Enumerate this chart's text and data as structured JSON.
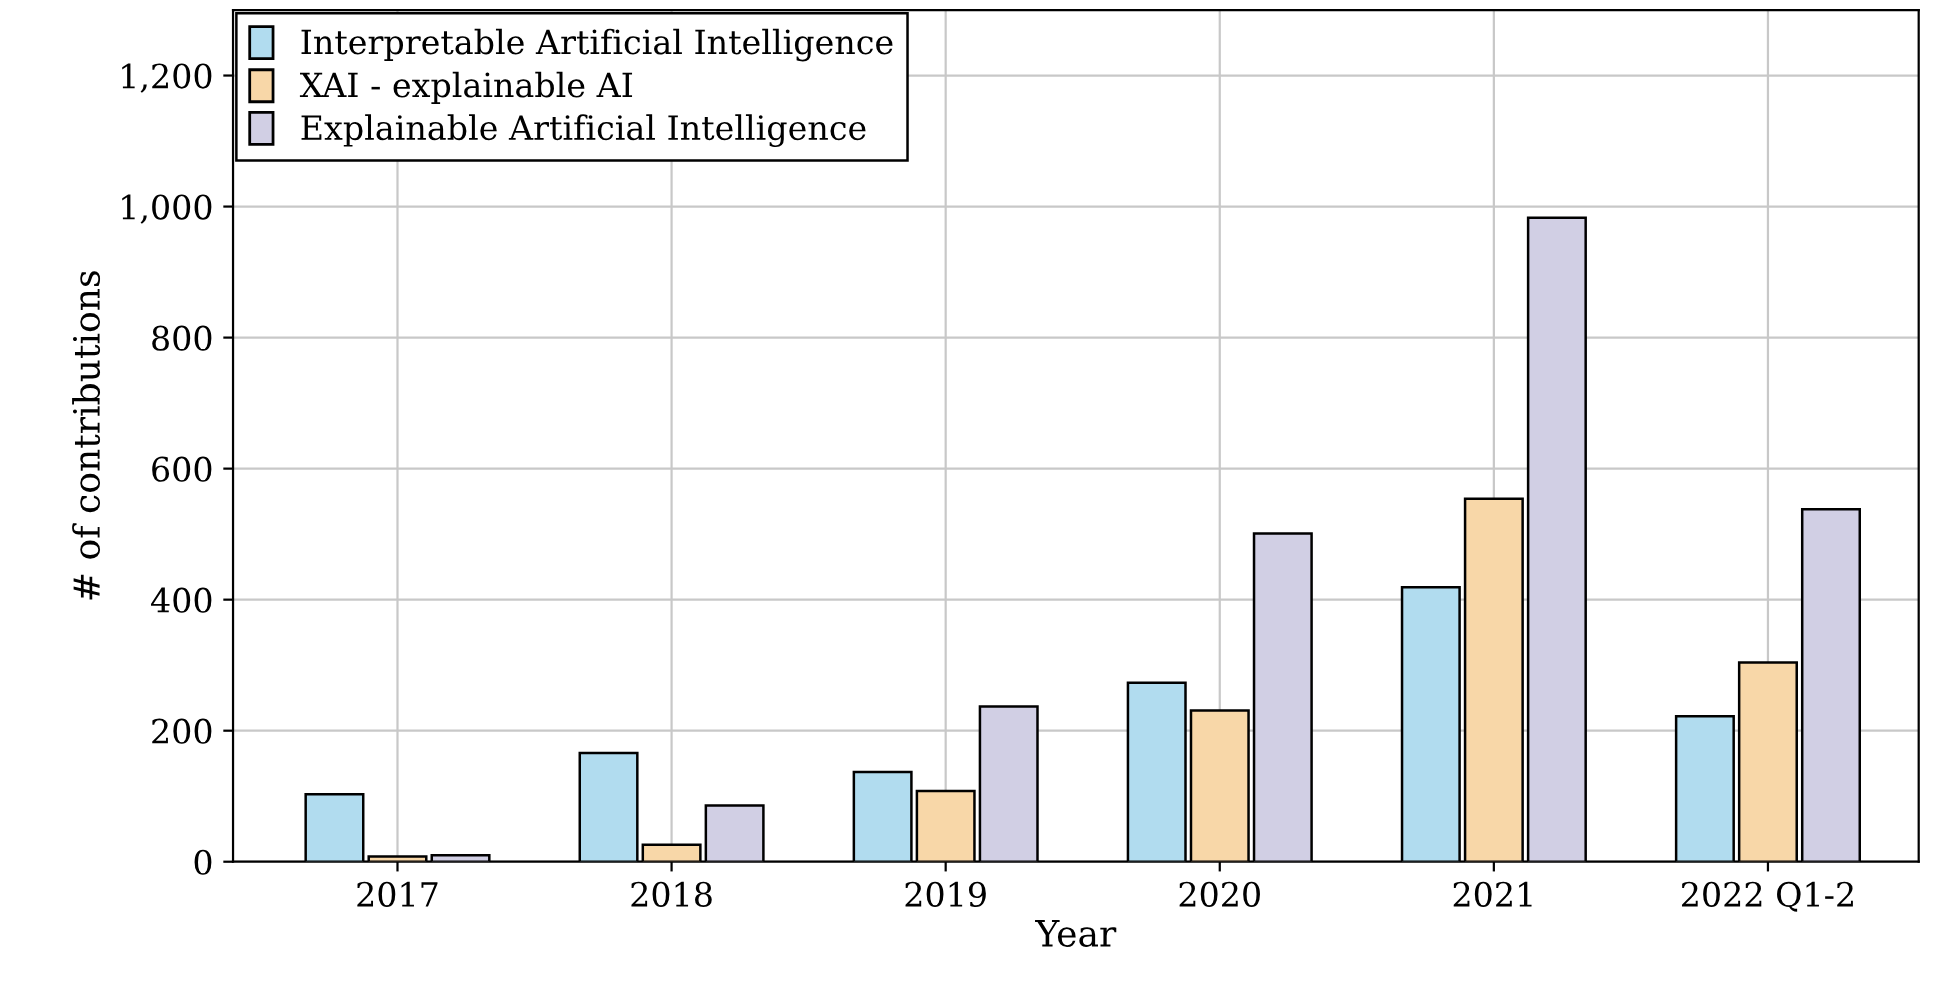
{
  "chart_data": {
    "type": "bar",
    "xlabel": "Year",
    "ylabel": "# of contributions",
    "categories": [
      "2017",
      "2018",
      "2019",
      "2020",
      "2021",
      "2022 Q1-2"
    ],
    "series": [
      {
        "name": "Interpretable Artificial Intelligence",
        "color": "#b1dcef",
        "values": [
          103,
          166,
          137,
          273,
          419,
          222
        ]
      },
      {
        "name": "XAI - explainable AI",
        "color": "#f8d7a8",
        "values": [
          8,
          26,
          108,
          231,
          554,
          304
        ]
      },
      {
        "name": "Explainable Artificial Intelligence",
        "color": "#d1cfe4",
        "values": [
          10,
          86,
          237,
          501,
          983,
          538
        ]
      }
    ],
    "ylim": [
      0,
      1300
    ],
    "yticks": [
      0,
      200,
      400,
      600,
      800,
      {
        "value": 1000,
        "label": "1,000"
      },
      {
        "value": 1200,
        "label": "1,200"
      }
    ],
    "grid": true,
    "legend": "top left"
  }
}
